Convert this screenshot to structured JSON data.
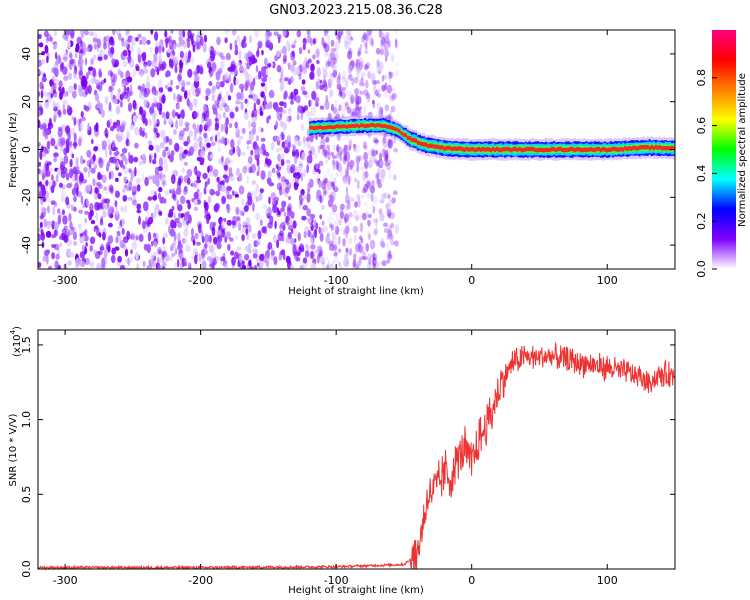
{
  "title": "GN03.2023.215.08.36.C28",
  "chart_data": [
    {
      "type": "heatmap",
      "name": "spectrogram",
      "xlabel": "Height of straight line (km)",
      "ylabel": "Frequency (Hz)",
      "xlim": [
        -320,
        150
      ],
      "ylim": [
        -50,
        50
      ],
      "x_ticks": [
        -300,
        -200,
        -100,
        0,
        100
      ],
      "y_ticks": [
        -40,
        -20,
        0,
        20,
        40
      ],
      "x_tick_labels": [
        "-300",
        "-200",
        "-100",
        "0",
        "100"
      ],
      "y_tick_labels": [
        "-40",
        "-20",
        "0",
        "20",
        "40"
      ],
      "noise_region": [
        -320,
        -55
      ],
      "signal_ridge": {
        "x": [
          -120,
          -100,
          -80,
          -65,
          -55,
          -45,
          -35,
          -20,
          0,
          50,
          100,
          130,
          150
        ],
        "y": [
          9,
          9.5,
          10,
          10,
          8,
          4,
          2,
          0.5,
          0,
          0,
          0,
          0.8,
          0.5
        ]
      },
      "grid": false
    },
    {
      "type": "line",
      "name": "snr",
      "xlabel": "Height of straight line (km)",
      "ylabel": "SNR (10 * V/V)",
      "multiplier_label": "(x10",
      "multiplier_exponent": "4",
      "multiplier_close": ")",
      "xlim": [
        -320,
        150
      ],
      "ylim": [
        0,
        1.6
      ],
      "x_ticks": [
        -300,
        -200,
        -100,
        0,
        100
      ],
      "y_ticks": [
        0,
        0.5,
        1.0,
        1.5
      ],
      "x_tick_labels": [
        "-300",
        "-200",
        "-100",
        "0",
        "100"
      ],
      "y_tick_labels": [
        "0.0",
        "0.5",
        "1.0",
        "1.5"
      ],
      "series": [
        {
          "color": "#ee3333",
          "x": [
            -320,
            -200,
            -100,
            -50,
            -40,
            -35,
            -32,
            -25,
            -20,
            -15,
            -10,
            -5,
            0,
            5,
            10,
            15,
            20,
            25,
            30,
            40,
            60,
            80,
            100,
            120,
            130,
            140,
            150
          ],
          "y": [
            0.01,
            0.01,
            0.015,
            0.03,
            0.1,
            0.35,
            0.5,
            0.55,
            0.65,
            0.6,
            0.75,
            0.8,
            0.7,
            0.85,
            0.95,
            1.05,
            1.2,
            1.3,
            1.38,
            1.42,
            1.42,
            1.38,
            1.35,
            1.3,
            1.25,
            1.3,
            1.3
          ]
        }
      ],
      "grid": false
    }
  ],
  "colorbar": {
    "label": "Normalized spectral amplitude",
    "ticks": [
      0.0,
      0.2,
      0.4,
      0.6,
      0.8
    ],
    "tick_labels": [
      "0.0",
      "0.2",
      "0.4",
      "0.6",
      "0.8"
    ],
    "range": [
      0,
      1
    ],
    "colors": [
      "#ffffff",
      "#8000ff",
      "#0000ff",
      "#00ffff",
      "#00ff00",
      "#ffff00",
      "#ff8000",
      "#ff0000",
      "#ff0080"
    ]
  }
}
